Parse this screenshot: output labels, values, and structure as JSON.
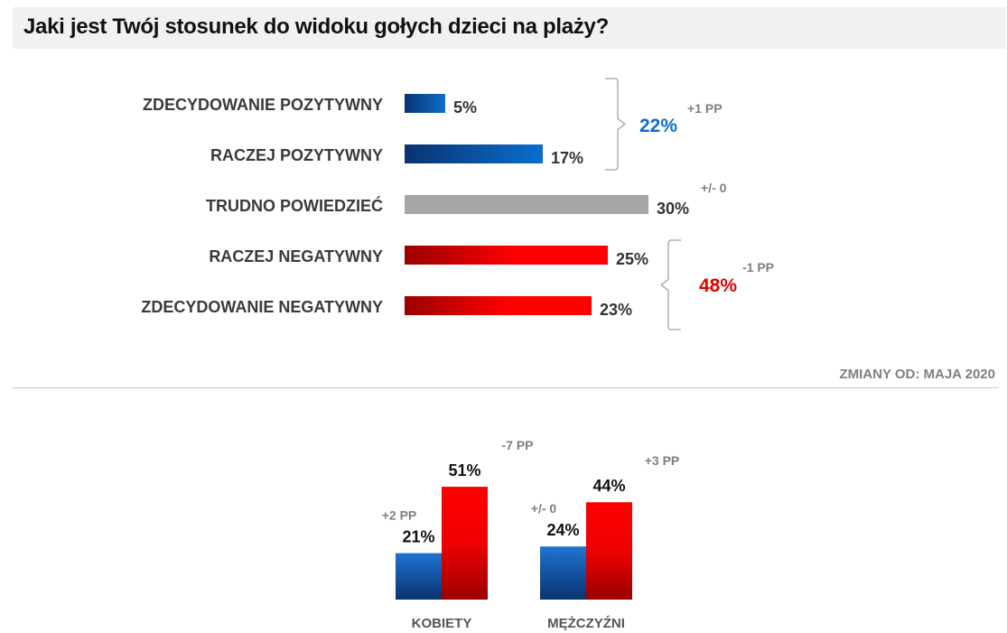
{
  "title": "Jaki jest Twój stosunek do widoku gołych dzieci na plaży?",
  "footnote": "ZMIANY OD: MAJA 2020",
  "colors": {
    "positive": "#0a6ecf",
    "positive_dark": "#0a3370",
    "neutral": "#a6a6a6",
    "negative": "#ff0000",
    "negative_dark": "#9b0000",
    "positive_text": "#0a6ecf",
    "negative_text": "#e00000",
    "change_text": "#7f7f7f"
  },
  "chart_data": [
    {
      "type": "bar",
      "orientation": "horizontal",
      "categories": [
        "ZDECYDOWANIE POZYTYWNY",
        "RACZEJ POZYTYWNY",
        "TRUDNO POWIEDZIEĆ",
        "RACZEJ NEGATYWNY",
        "ZDECYDOWANIE NEGATYWNY"
      ],
      "values": [
        5,
        17,
        30,
        25,
        23
      ],
      "value_labels": [
        "5%",
        "17%",
        "30%",
        "25%",
        "23%"
      ],
      "groups": [
        {
          "members": [
            0,
            1
          ],
          "total": "22%",
          "change": "+1 PP",
          "tone": "positive"
        },
        {
          "members": [
            2
          ],
          "change": "+/- 0",
          "tone": "neutral"
        },
        {
          "members": [
            3,
            4
          ],
          "total": "48%",
          "change": "-1 PP",
          "tone": "negative"
        }
      ]
    },
    {
      "type": "bar",
      "orientation": "vertical",
      "categories": [
        "KOBIETY",
        "MĘŻCZYŹNI"
      ],
      "series": [
        {
          "values": [
            21,
            24
          ],
          "labels": [
            "21%",
            "24%"
          ],
          "changes": [
            "+2 PP",
            "+/- 0"
          ],
          "tone": "positive"
        },
        {
          "values": [
            51,
            44
          ],
          "labels": [
            "51%",
            "44%"
          ],
          "changes": [
            "-7 PP",
            "+3 PP"
          ],
          "tone": "negative"
        }
      ]
    }
  ]
}
